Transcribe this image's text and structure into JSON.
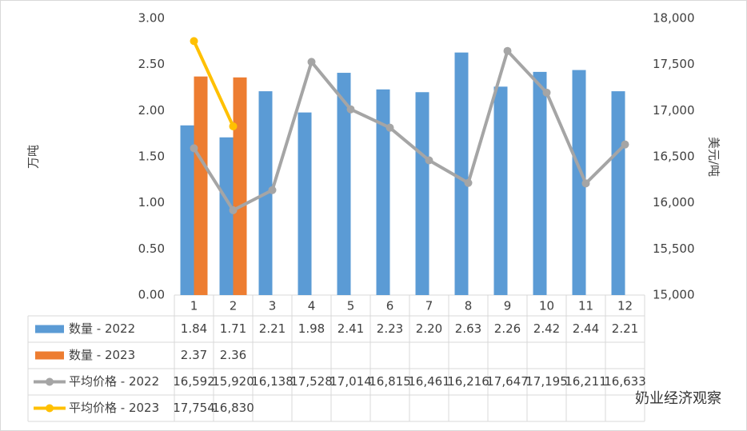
{
  "chart_data": {
    "type": "bar",
    "categories": [
      "1",
      "2",
      "3",
      "4",
      "5",
      "6",
      "7",
      "8",
      "9",
      "10",
      "11",
      "12"
    ],
    "y_label": "万吨",
    "y2_label": "美元/吨",
    "watermark": "奶业经济观察",
    "ylim": [
      0,
      3
    ],
    "yticks": [
      {
        "value": 0,
        "label": "0.00"
      },
      {
        "value": 0.5,
        "label": "0.50"
      },
      {
        "value": 1,
        "label": "1.00"
      },
      {
        "value": 1.5,
        "label": "1.50"
      },
      {
        "value": 2,
        "label": "2.00"
      },
      {
        "value": 2.5,
        "label": "2.50"
      },
      {
        "value": 3,
        "label": "3.00"
      }
    ],
    "y2lim": [
      15000,
      18000
    ],
    "y2ticks": [
      {
        "value": 15000,
        "label": "15,000"
      },
      {
        "value": 15500,
        "label": "15,500"
      },
      {
        "value": 16000,
        "label": "16,000"
      },
      {
        "value": 16500,
        "label": "16,500"
      },
      {
        "value": 17000,
        "label": "17,000"
      },
      {
        "value": 17500,
        "label": "17,500"
      },
      {
        "value": 18000,
        "label": "18,000"
      }
    ],
    "grid": false,
    "data_table": true,
    "series": [
      {
        "name": "数量 - 2022",
        "type": "bar",
        "color": "#5b9bd5",
        "values": [
          1.84,
          1.71,
          2.21,
          1.98,
          2.41,
          2.23,
          2.2,
          2.63,
          2.26,
          2.42,
          2.44,
          2.21
        ],
        "value_labels": [
          "1.84",
          "1.71",
          "2.21",
          "1.98",
          "2.41",
          "2.23",
          "2.20",
          "2.63",
          "2.26",
          "2.42",
          "2.44",
          "2.21"
        ]
      },
      {
        "name": "数量 - 2023",
        "type": "bar",
        "color": "#ed7d31",
        "values": [
          2.37,
          2.36,
          null,
          null,
          null,
          null,
          null,
          null,
          null,
          null,
          null,
          null
        ],
        "value_labels": [
          "2.37",
          "2.36",
          null,
          null,
          null,
          null,
          null,
          null,
          null,
          null,
          null,
          null
        ]
      },
      {
        "name": "平均价格 - 2022",
        "type": "line",
        "axis": "y2",
        "color": "#a5a5a5",
        "values": [
          16592,
          15920,
          16138,
          17528,
          17014,
          16815,
          16461,
          16216,
          17647,
          17195,
          16211,
          16633
        ],
        "value_labels": [
          "16,592",
          "15,920",
          "16,138",
          "17,528",
          "17,014",
          "16,815",
          "16,461",
          "16,216",
          "17,647",
          "17,195",
          "16,211",
          "16,633"
        ]
      },
      {
        "name": "平均价格 - 2023",
        "type": "line",
        "axis": "y2",
        "color": "#ffc000",
        "values": [
          17754,
          16830,
          null,
          null,
          null,
          null,
          null,
          null,
          null,
          null,
          null,
          null
        ],
        "value_labels": [
          "17,754",
          "16,830",
          null,
          null,
          null,
          null,
          null,
          null,
          null,
          null,
          null,
          null
        ]
      }
    ]
  }
}
